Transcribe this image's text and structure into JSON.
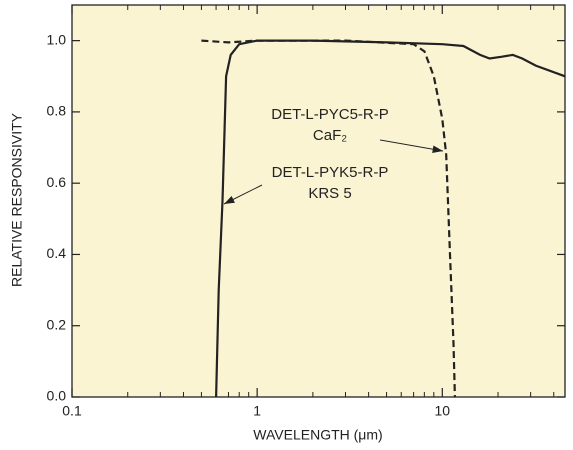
{
  "chart_data": {
    "type": "line",
    "xlabel": "WAVELENGTH (μm)",
    "ylabel": "RELATIVE RESPONSIVITY",
    "xscale": "log",
    "xlim": [
      0.1,
      46
    ],
    "ylim": [
      0,
      1.1
    ],
    "xticks": [
      0.1,
      1,
      10
    ],
    "xminorticks": [
      0.2,
      0.3,
      0.4,
      0.5,
      0.6,
      0.7,
      0.8,
      0.9,
      2,
      3,
      4,
      5,
      6,
      7,
      8,
      9,
      20,
      30,
      40
    ],
    "yticks": [
      {
        "value": 0,
        "label": "0.0"
      },
      0.2,
      0.4,
      0.6,
      0.8,
      {
        "value": 1,
        "label": "1.0"
      }
    ],
    "background": "#fbf4d3",
    "series": [
      {
        "name": "DET-L-PYK5-R-P",
        "color": "#222222",
        "dash": false,
        "x": [
          0.6,
          0.62,
          0.65,
          0.68,
          0.72,
          0.8,
          1,
          2,
          5,
          10,
          13,
          16,
          18,
          21,
          24,
          27,
          32,
          46
        ],
        "values": [
          0,
          0.3,
          0.55,
          0.9,
          0.96,
          0.99,
          1.0,
          1.0,
          0.995,
          0.99,
          0.985,
          0.96,
          0.95,
          0.955,
          0.96,
          0.95,
          0.93,
          0.9
        ]
      },
      {
        "name": "DET-L-PYC5-R-P",
        "color": "#222222",
        "dash": true,
        "x": [
          0.5,
          0.7,
          1,
          3,
          7,
          8,
          9,
          10,
          10.5,
          11,
          11.5,
          11.7
        ],
        "values": [
          1.0,
          0.995,
          1.0,
          1.0,
          0.99,
          0.97,
          0.9,
          0.78,
          0.68,
          0.4,
          0.15,
          0
        ]
      }
    ],
    "annotations": [
      {
        "lines": [
          "DET-L-PYC5-R-P",
          "CaF₂"
        ],
        "series": 1
      },
      {
        "lines": [
          "DET-L-PYK5-R-P",
          "KRS 5"
        ],
        "series": 0
      }
    ]
  }
}
